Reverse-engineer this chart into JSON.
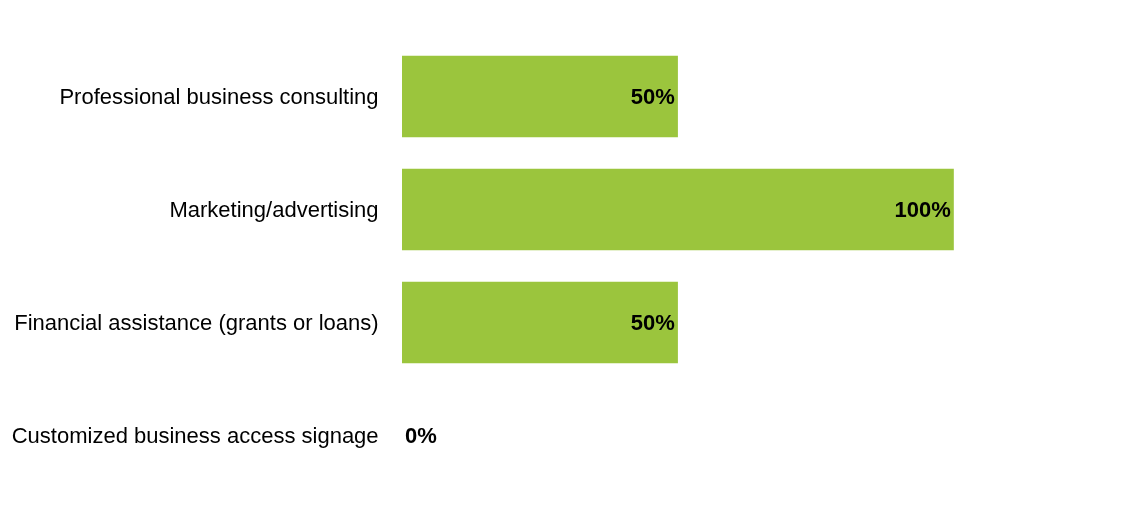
{
  "chart_data": {
    "type": "bar",
    "orientation": "horizontal",
    "categories": [
      "Professional business consulting",
      "Marketing/advertising",
      "Financial assistance (grants or loans)",
      "Customized business access signage"
    ],
    "values": [
      50,
      100,
      50,
      0
    ],
    "color": "#9bc53d",
    "value_labels": [
      "50%",
      "100%",
      "50%",
      "0%"
    ],
    "legend": false
  }
}
